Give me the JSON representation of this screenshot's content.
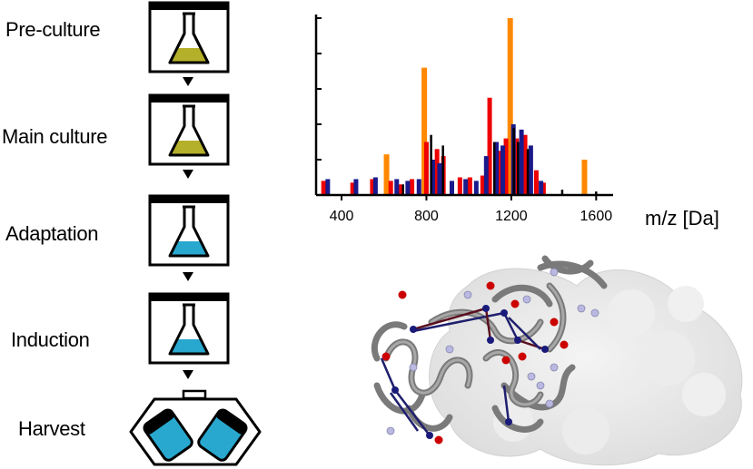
{
  "workflow": {
    "steps": [
      {
        "label": "Pre-culture",
        "liquid_color": "#b5b02a"
      },
      {
        "label": "Main culture",
        "liquid_color": "#b5b02a"
      },
      {
        "label": "Adaptation",
        "liquid_color": "#29a8cf"
      },
      {
        "label": "Induction",
        "liquid_color": "#29a8cf"
      },
      {
        "label": "Harvest",
        "liquid_color": "#29a8cf"
      }
    ]
  },
  "chart_data": {
    "type": "bar",
    "xlabel": "m/z [Da]",
    "ylabel": "",
    "xlim": [
      280,
      1680
    ],
    "ylim": [
      0,
      100
    ],
    "x_ticks": [
      400,
      800,
      1200,
      1600
    ],
    "y_ticks": [
      20,
      40,
      60,
      80,
      100
    ],
    "legend": "none",
    "series": [
      {
        "color": "#ff8800",
        "peaks": [
          [
            612,
            23
          ],
          [
            790,
            72
          ],
          [
            1195,
            100
          ],
          [
            1545,
            20
          ]
        ]
      },
      {
        "color": "#ee0000",
        "peaks": [
          [
            315,
            8
          ],
          [
            452,
            7
          ],
          [
            545,
            9
          ],
          [
            632,
            8
          ],
          [
            678,
            6
          ],
          [
            732,
            9
          ],
          [
            800,
            30
          ],
          [
            850,
            26
          ],
          [
            880,
            22
          ],
          [
            958,
            10
          ],
          [
            1005,
            10
          ],
          [
            1065,
            11
          ],
          [
            1098,
            55
          ],
          [
            1145,
            25
          ],
          [
            1175,
            32
          ],
          [
            1225,
            32
          ],
          [
            1265,
            34
          ],
          [
            1318,
            14
          ],
          [
            1352,
            7
          ]
        ]
      },
      {
        "color": "#1a1a8c",
        "peaks": [
          [
            335,
            9
          ],
          [
            468,
            9
          ],
          [
            560,
            10
          ],
          [
            660,
            9
          ],
          [
            712,
            8
          ],
          [
            765,
            9
          ],
          [
            830,
            20
          ],
          [
            862,
            18
          ],
          [
            920,
            8
          ],
          [
            985,
            9
          ],
          [
            1035,
            8
          ],
          [
            1082,
            22
          ],
          [
            1130,
            30
          ],
          [
            1160,
            28
          ],
          [
            1210,
            40
          ],
          [
            1248,
            37
          ],
          [
            1292,
            28
          ],
          [
            1340,
            8
          ]
        ]
      },
      {
        "color": "#000000",
        "peaks": [
          [
            690,
            6
          ],
          [
            822,
            34
          ],
          [
            878,
            28
          ],
          [
            1120,
            30
          ],
          [
            1212,
            38
          ],
          [
            1232,
            30
          ],
          [
            1278,
            26
          ],
          [
            1440,
            3
          ],
          [
            1600,
            2
          ]
        ]
      }
    ]
  },
  "structure": {
    "ribbon_color": "#7a7a7a",
    "surface_color": "#e8e8e8",
    "crosslink_colors": [
      "#1f1f6e",
      "#5a1020"
    ],
    "node_colors": [
      "#cc0000",
      "#1a1a7a",
      "#b8b8e0"
    ]
  }
}
